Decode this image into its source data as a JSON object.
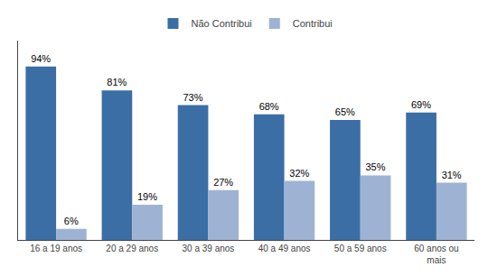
{
  "chart_data": {
    "type": "bar",
    "categories": [
      "16 a 19 anos",
      "20 a 29 anos",
      "30 a 39 anos",
      "40 a 49 anos",
      "50 a 59 anos",
      "60 anos ou\nmais"
    ],
    "series": [
      {
        "name": "Não Contribui",
        "color": "#3B6EA5",
        "values": [
          94,
          81,
          73,
          68,
          65,
          69
        ],
        "value_labels": [
          "94%",
          "81%",
          "73%",
          "68%",
          "65%",
          "69%"
        ]
      },
      {
        "name": "Contribui",
        "color": "#9EB3D4",
        "values": [
          6,
          19,
          27,
          32,
          35,
          31
        ],
        "value_labels": [
          "6%",
          "19%",
          "27%",
          "32%",
          "35%",
          "31%"
        ]
      }
    ],
    "ylim": [
      0,
      108
    ],
    "yticks": [],
    "tick_labels": "x",
    "grid": false,
    "legend": "top",
    "data_labels": true
  }
}
